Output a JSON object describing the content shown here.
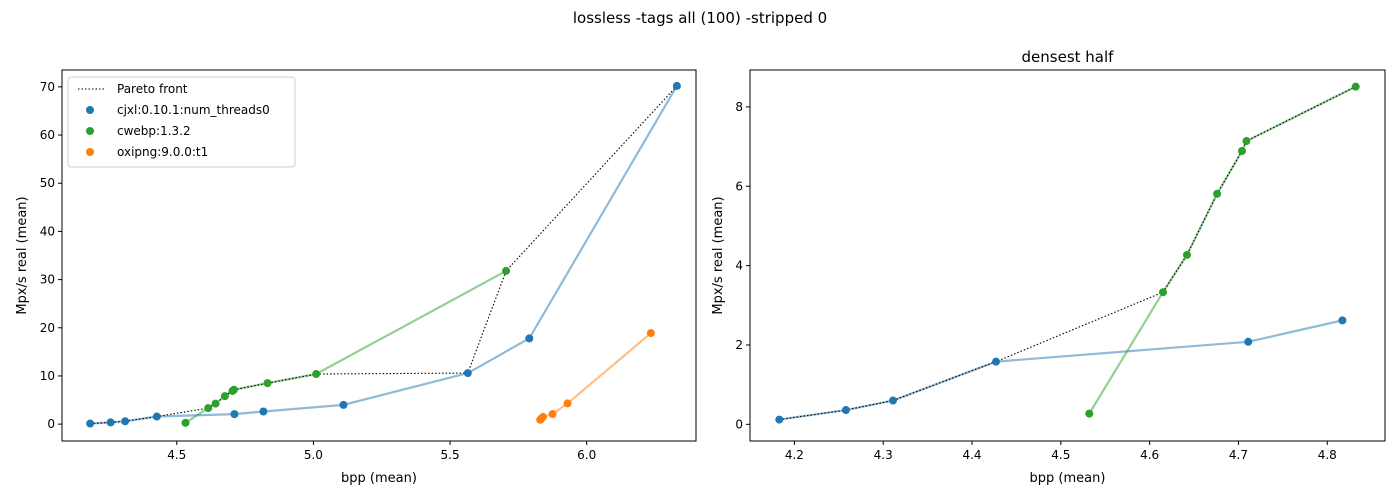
{
  "suptitle": "lossless -tags all (100) -stripped 0",
  "colors": {
    "cjxl": "#1f77b4",
    "cwebp": "#2ca02c",
    "oxipng": "#ff7f0e",
    "pareto": "#000000"
  },
  "chart_data": [
    {
      "type": "scatter",
      "title": "",
      "xlabel": "bpp (mean)",
      "ylabel": "Mpx/s real (mean)",
      "xlim": [
        4.08,
        6.4
      ],
      "ylim": [
        -3.5,
        73.5
      ],
      "xticks": [
        4.5,
        5.0,
        5.5,
        6.0
      ],
      "xtick_labels": [
        "4.5",
        "5.0",
        "5.5",
        "6.0"
      ],
      "yticks": [
        0,
        10,
        20,
        30,
        40,
        50,
        60,
        70
      ],
      "ytick_labels": [
        "0",
        "10",
        "20",
        "30",
        "40",
        "50",
        "60",
        "70"
      ],
      "legend": {
        "position": "top-left",
        "entries": [
          "Pareto front",
          "cjxl:0.10.1:num_threads0",
          "cwebp:1.3.2",
          "oxipng:9.0.0:t1"
        ]
      },
      "series": [
        {
          "name": "cjxl:0.10.1:num_threads0",
          "color_key": "cjxl",
          "points": [
            [
              4.183,
              0.12
            ],
            [
              4.258,
              0.36
            ],
            [
              4.311,
              0.6
            ],
            [
              4.427,
              1.58
            ],
            [
              4.711,
              2.08
            ],
            [
              4.817,
              2.62
            ],
            [
              5.11,
              4.0
            ],
            [
              5.565,
              10.6
            ],
            [
              5.79,
              17.8
            ],
            [
              6.33,
              70.2
            ]
          ]
        },
        {
          "name": "cwebp:1.3.2",
          "color_key": "cwebp",
          "points": [
            [
              4.532,
              0.27
            ],
            [
              4.615,
              3.33
            ],
            [
              4.642,
              4.27
            ],
            [
              4.676,
              5.81
            ],
            [
              4.704,
              6.89
            ],
            [
              4.709,
              7.14
            ],
            [
              4.832,
              8.51
            ],
            [
              5.01,
              10.4
            ],
            [
              5.705,
              31.8
            ]
          ]
        },
        {
          "name": "oxipng:9.0.0:t1",
          "color_key": "oxipng",
          "points": [
            [
              5.83,
              0.9
            ],
            [
              5.835,
              1.2
            ],
            [
              5.84,
              1.5
            ],
            [
              5.875,
              2.1
            ],
            [
              5.93,
              4.3
            ],
            [
              6.235,
              18.9
            ]
          ]
        }
      ],
      "pareto": [
        [
          4.183,
          0.12
        ],
        [
          4.258,
          0.36
        ],
        [
          4.311,
          0.6
        ],
        [
          4.427,
          1.58
        ],
        [
          4.615,
          3.33
        ],
        [
          4.642,
          4.27
        ],
        [
          4.676,
          5.81
        ],
        [
          4.704,
          6.89
        ],
        [
          4.709,
          7.14
        ],
        [
          4.832,
          8.51
        ],
        [
          5.01,
          10.4
        ],
        [
          5.565,
          10.6
        ],
        [
          5.705,
          31.8
        ],
        [
          6.33,
          70.2
        ]
      ]
    },
    {
      "type": "scatter",
      "title": "densest half",
      "xlabel": "bpp (mean)",
      "ylabel": "Mpx/s real (mean)",
      "xlim": [
        4.15,
        4.865
      ],
      "ylim": [
        -0.42,
        8.93
      ],
      "xticks": [
        4.2,
        4.3,
        4.4,
        4.5,
        4.6,
        4.7,
        4.8
      ],
      "xtick_labels": [
        "4.2",
        "4.3",
        "4.4",
        "4.5",
        "4.6",
        "4.7",
        "4.8"
      ],
      "yticks": [
        0,
        2,
        4,
        6,
        8
      ],
      "ytick_labels": [
        "0",
        "2",
        "4",
        "6",
        "8"
      ],
      "series": [
        {
          "name": "cjxl:0.10.1:num_threads0",
          "color_key": "cjxl",
          "points": [
            [
              4.183,
              0.12
            ],
            [
              4.258,
              0.36
            ],
            [
              4.311,
              0.6
            ],
            [
              4.427,
              1.58
            ],
            [
              4.711,
              2.08
            ],
            [
              4.817,
              2.62
            ]
          ]
        },
        {
          "name": "cwebp:1.3.2",
          "color_key": "cwebp",
          "points": [
            [
              4.532,
              0.27
            ],
            [
              4.615,
              3.33
            ],
            [
              4.642,
              4.27
            ],
            [
              4.676,
              5.81
            ],
            [
              4.704,
              6.89
            ],
            [
              4.709,
              7.14
            ],
            [
              4.832,
              8.51
            ]
          ]
        }
      ],
      "pareto": [
        [
          4.183,
          0.12
        ],
        [
          4.258,
          0.36
        ],
        [
          4.311,
          0.6
        ],
        [
          4.427,
          1.58
        ],
        [
          4.615,
          3.33
        ],
        [
          4.642,
          4.27
        ],
        [
          4.676,
          5.81
        ],
        [
          4.704,
          6.89
        ],
        [
          4.709,
          7.14
        ],
        [
          4.832,
          8.51
        ]
      ]
    }
  ]
}
